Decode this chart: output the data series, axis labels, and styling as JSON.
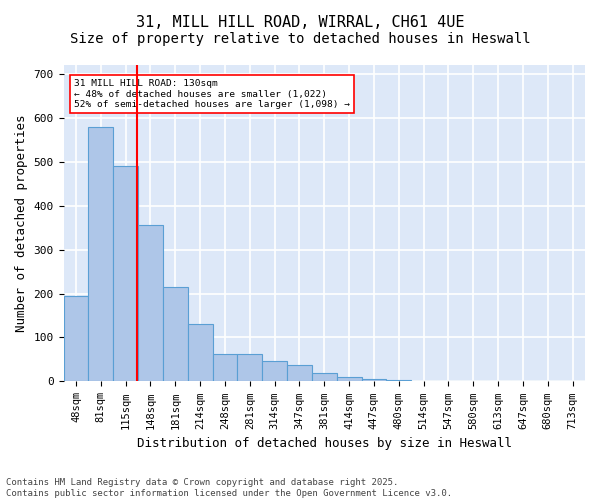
{
  "title1": "31, MILL HILL ROAD, WIRRAL, CH61 4UE",
  "title2": "Size of property relative to detached houses in Heswall",
  "xlabel": "Distribution of detached houses by size in Heswall",
  "ylabel": "Number of detached properties",
  "bar_values": [
    195,
    580,
    490,
    355,
    215,
    130,
    63,
    63,
    47,
    37,
    20,
    10,
    5,
    3,
    2,
    1,
    1,
    0,
    0,
    0,
    0
  ],
  "bin_labels": [
    "48sqm",
    "81sqm",
    "115sqm",
    "148sqm",
    "181sqm",
    "214sqm",
    "248sqm",
    "281sqm",
    "314sqm",
    "347sqm",
    "381sqm",
    "414sqm",
    "447sqm",
    "480sqm",
    "514sqm",
    "547sqm",
    "580sqm",
    "613sqm",
    "647sqm",
    "680sqm",
    "713sqm"
  ],
  "bar_color": "#aec6e8",
  "bar_edge_color": "#5a9fd4",
  "vline_color": "red",
  "annotation_text": "31 MILL HILL ROAD: 130sqm\n← 48% of detached houses are smaller (1,022)\n52% of semi-detached houses are larger (1,098) →",
  "annotation_box_color": "white",
  "annotation_box_edge_color": "red",
  "ylim": [
    0,
    720
  ],
  "yticks": [
    0,
    100,
    200,
    300,
    400,
    500,
    600,
    700
  ],
  "footnote": "Contains HM Land Registry data © Crown copyright and database right 2025.\nContains public sector information licensed under the Open Government Licence v3.0.",
  "bg_color": "#dde8f8",
  "grid_color": "white",
  "title_fontsize": 11,
  "subtitle_fontsize": 10,
  "label_fontsize": 9,
  "tick_fontsize": 7.5,
  "footnote_fontsize": 6.5
}
